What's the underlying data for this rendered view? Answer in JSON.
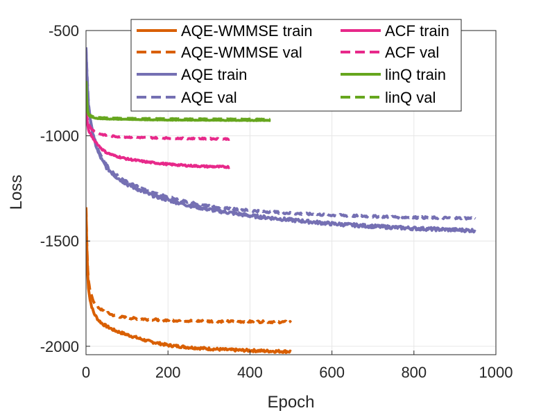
{
  "chart_data": {
    "type": "line",
    "xlabel": "Epoch",
    "ylabel": "Loss",
    "xlim": [
      0,
      1000
    ],
    "ylim": [
      -2040,
      -500
    ],
    "xticks": [
      0,
      200,
      400,
      600,
      800,
      1000
    ],
    "yticks": [
      -500,
      -1000,
      -1500,
      -2000
    ],
    "xtick_labels": [
      "0",
      "200",
      "400",
      "600",
      "800",
      "1000"
    ],
    "ytick_labels": [
      "-500",
      "-1000",
      "-1500",
      "-2000"
    ],
    "grid": true,
    "legend_position": "top-center",
    "series": [
      {
        "name": "AQE-WMMSE train",
        "color": "#d95f02",
        "dash": "solid",
        "x": [
          0,
          3,
          6,
          10,
          15,
          20,
          30,
          40,
          50,
          70,
          100,
          150,
          200,
          250,
          300,
          350,
          400,
          450,
          500
        ],
        "y": [
          -1340,
          -1620,
          -1720,
          -1780,
          -1820,
          -1845,
          -1875,
          -1893,
          -1905,
          -1925,
          -1945,
          -1975,
          -1995,
          -2005,
          -2012,
          -2017,
          -2020,
          -2023,
          -2025
        ],
        "noise": 6
      },
      {
        "name": "AQE-WMMSE val",
        "color": "#d95f02",
        "dash": "dashed",
        "x": [
          0,
          3,
          6,
          10,
          15,
          20,
          30,
          40,
          50,
          70,
          100,
          150,
          200,
          250,
          300,
          350,
          400,
          450,
          500
        ],
        "y": [
          -1340,
          -1600,
          -1690,
          -1740,
          -1770,
          -1790,
          -1815,
          -1830,
          -1840,
          -1855,
          -1865,
          -1872,
          -1876,
          -1879,
          -1881,
          -1882,
          -1883,
          -1884,
          -1885
        ],
        "noise": 5
      },
      {
        "name": "AQE train",
        "color": "#7570b3",
        "dash": "solid",
        "x": [
          0,
          3,
          6,
          10,
          15,
          20,
          30,
          40,
          50,
          70,
          100,
          150,
          200,
          250,
          300,
          350,
          400,
          500,
          600,
          700,
          800,
          900,
          950
        ],
        "y": [
          -580,
          -750,
          -850,
          -920,
          -975,
          -1020,
          -1080,
          -1120,
          -1150,
          -1190,
          -1230,
          -1275,
          -1305,
          -1330,
          -1350,
          -1365,
          -1380,
          -1400,
          -1418,
          -1430,
          -1440,
          -1447,
          -1450
        ],
        "noise": 8
      },
      {
        "name": "AQE val",
        "color": "#7570b3",
        "dash": "dashed",
        "x": [
          0,
          3,
          6,
          10,
          15,
          20,
          30,
          40,
          50,
          70,
          100,
          150,
          200,
          250,
          300,
          350,
          400,
          500,
          600,
          700,
          800,
          900,
          950
        ],
        "y": [
          -580,
          -740,
          -840,
          -910,
          -965,
          -1010,
          -1070,
          -1110,
          -1140,
          -1180,
          -1220,
          -1262,
          -1292,
          -1315,
          -1332,
          -1345,
          -1355,
          -1368,
          -1377,
          -1383,
          -1388,
          -1391,
          -1392
        ],
        "noise": 5
      },
      {
        "name": "ACF train",
        "color": "#e7298a",
        "dash": "solid",
        "x": [
          0,
          3,
          6,
          10,
          15,
          20,
          30,
          40,
          50,
          70,
          100,
          150,
          200,
          250,
          300,
          350
        ],
        "y": [
          -880,
          -940,
          -970,
          -990,
          -1005,
          -1020,
          -1045,
          -1065,
          -1080,
          -1095,
          -1110,
          -1125,
          -1135,
          -1142,
          -1146,
          -1148
        ],
        "noise": 4
      },
      {
        "name": "ACF val",
        "color": "#e7298a",
        "dash": "dashed",
        "x": [
          0,
          3,
          6,
          10,
          15,
          20,
          30,
          40,
          50,
          70,
          100,
          150,
          200,
          250,
          300,
          350
        ],
        "y": [
          -880,
          -920,
          -945,
          -960,
          -970,
          -978,
          -988,
          -994,
          -998,
          -1003,
          -1006,
          -1009,
          -1011,
          -1013,
          -1014,
          -1015
        ],
        "noise": 3
      },
      {
        "name": "linQ train",
        "color": "#66a61e",
        "dash": "solid",
        "x": [
          0,
          2,
          4,
          6,
          10,
          15,
          20,
          30,
          50,
          100,
          150,
          200,
          300,
          400,
          450
        ],
        "y": [
          -740,
          -840,
          -885,
          -900,
          -908,
          -912,
          -915,
          -918,
          -920,
          -922,
          -924,
          -925,
          -926,
          -927,
          -927
        ],
        "noise": 1
      },
      {
        "name": "linQ val",
        "color": "#66a61e",
        "dash": "dashed",
        "x": [
          0,
          2,
          4,
          6,
          10,
          15,
          20,
          30,
          50,
          100,
          150,
          200,
          300,
          400,
          450
        ],
        "y": [
          -740,
          -835,
          -880,
          -895,
          -903,
          -907,
          -910,
          -913,
          -915,
          -917,
          -918,
          -919,
          -920,
          -921,
          -921
        ],
        "noise": 1
      }
    ]
  }
}
